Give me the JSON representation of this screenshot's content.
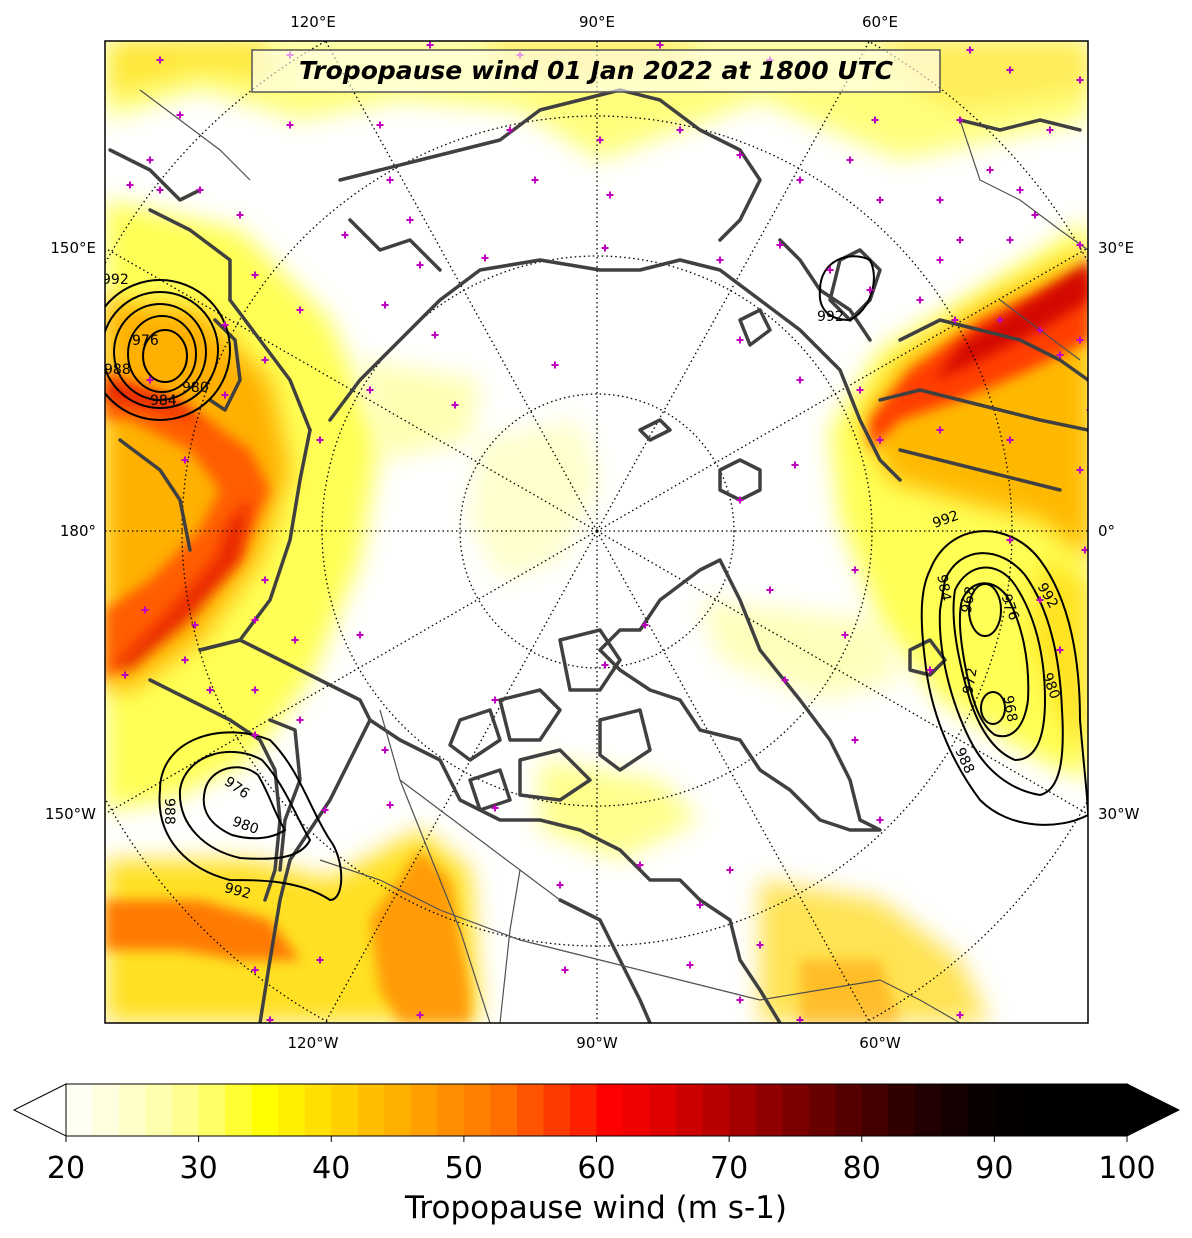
{
  "title": "Tropopause wind 01 Jan 2022 at 1800 UTC",
  "colorbar": {
    "label": "Tropopause wind (m s-1)",
    "ticks": [
      "20",
      "30",
      "40",
      "50",
      "60",
      "70",
      "80",
      "90",
      "100"
    ],
    "min": 20,
    "max": 100,
    "step": 2,
    "colors": [
      "#fffff4",
      "#ffffe0",
      "#ffffc8",
      "#ffffb0",
      "#ffff90",
      "#ffff66",
      "#ffff33",
      "#ffff00",
      "#fff000",
      "#ffe000",
      "#ffd000",
      "#ffbf00",
      "#ffaf00",
      "#ff9f00",
      "#ff8f00",
      "#ff7f00",
      "#ff6f00",
      "#ff5500",
      "#ff3a00",
      "#ff2000",
      "#ff0000",
      "#f00000",
      "#e00000",
      "#cc0000",
      "#b80000",
      "#a40000",
      "#900000",
      "#7c0000",
      "#680000",
      "#540000",
      "#420000",
      "#300000",
      "#200000",
      "#140000",
      "#0a0000",
      "#040000",
      "#020000",
      "#010000",
      "#000000",
      "#000000"
    ],
    "extend": "both"
  },
  "longitude_labels": {
    "top": [
      "120°E",
      "90°E",
      "60°E"
    ],
    "bottom": [
      "120°W",
      "90°W",
      "60°W"
    ],
    "left": [
      "150°E",
      "180°",
      "150°W"
    ],
    "right": [
      "30°E",
      "0°",
      "30°W"
    ]
  },
  "contour_labels": {
    "upper_left_low": [
      "992",
      "976",
      "988",
      "984",
      "980"
    ],
    "lower_left_low": [
      "976",
      "980",
      "988",
      "992"
    ],
    "right_low": [
      "992",
      "984",
      "968",
      "976",
      "992",
      "972",
      "968",
      "980",
      "988"
    ],
    "upper_right": [
      "992"
    ]
  }
}
